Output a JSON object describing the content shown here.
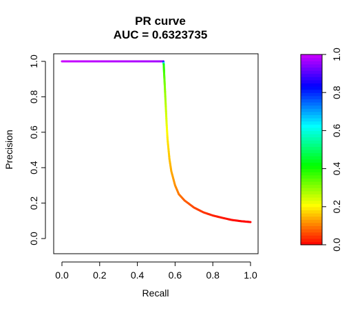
{
  "chart_data": {
    "type": "line",
    "title": "PR curve",
    "subtitle": "AUC = 0.6323735",
    "xlabel": "Recall",
    "ylabel": "Precision",
    "xlim": [
      0,
      1
    ],
    "ylim": [
      0,
      1
    ],
    "x_ticks": [
      "0.0",
      "0.2",
      "0.4",
      "0.6",
      "0.8",
      "1.0"
    ],
    "y_ticks": [
      "0.0",
      "0.2",
      "0.4",
      "0.6",
      "0.8",
      "1.0"
    ],
    "grid": false,
    "points": [
      {
        "recall": 0.0,
        "precision": 1.0,
        "threshold": 1.0
      },
      {
        "recall": 0.1,
        "precision": 1.0,
        "threshold": 0.99
      },
      {
        "recall": 0.2,
        "precision": 1.0,
        "threshold": 0.985
      },
      {
        "recall": 0.3,
        "precision": 1.0,
        "threshold": 0.98
      },
      {
        "recall": 0.4,
        "precision": 1.0,
        "threshold": 0.975
      },
      {
        "recall": 0.5,
        "precision": 1.0,
        "threshold": 0.97
      },
      {
        "recall": 0.538,
        "precision": 1.0,
        "threshold": 0.96
      },
      {
        "recall": 0.54,
        "precision": 0.98,
        "threshold": 0.4
      },
      {
        "recall": 0.542,
        "precision": 0.93,
        "threshold": 0.36
      },
      {
        "recall": 0.545,
        "precision": 0.87,
        "threshold": 0.32
      },
      {
        "recall": 0.55,
        "precision": 0.76,
        "threshold": 0.27
      },
      {
        "recall": 0.555,
        "precision": 0.65,
        "threshold": 0.23
      },
      {
        "recall": 0.56,
        "precision": 0.56,
        "threshold": 0.19
      },
      {
        "recall": 0.57,
        "precision": 0.45,
        "threshold": 0.16
      },
      {
        "recall": 0.58,
        "precision": 0.38,
        "threshold": 0.14
      },
      {
        "recall": 0.6,
        "precision": 0.3,
        "threshold": 0.12
      },
      {
        "recall": 0.62,
        "precision": 0.25,
        "threshold": 0.1
      },
      {
        "recall": 0.65,
        "precision": 0.215,
        "threshold": 0.08
      },
      {
        "recall": 0.7,
        "precision": 0.175,
        "threshold": 0.06
      },
      {
        "recall": 0.75,
        "precision": 0.148,
        "threshold": 0.045
      },
      {
        "recall": 0.8,
        "precision": 0.13,
        "threshold": 0.03
      },
      {
        "recall": 0.85,
        "precision": 0.117,
        "threshold": 0.02
      },
      {
        "recall": 0.9,
        "precision": 0.105,
        "threshold": 0.012
      },
      {
        "recall": 0.95,
        "precision": 0.098,
        "threshold": 0.006
      },
      {
        "recall": 1.0,
        "precision": 0.093,
        "threshold": 0.0
      }
    ],
    "color_scale": {
      "type": "rainbow",
      "range": [
        0,
        1
      ],
      "ticks": [
        "0.0",
        "0.2",
        "0.4",
        "0.6",
        "0.8",
        "1.0"
      ]
    }
  }
}
